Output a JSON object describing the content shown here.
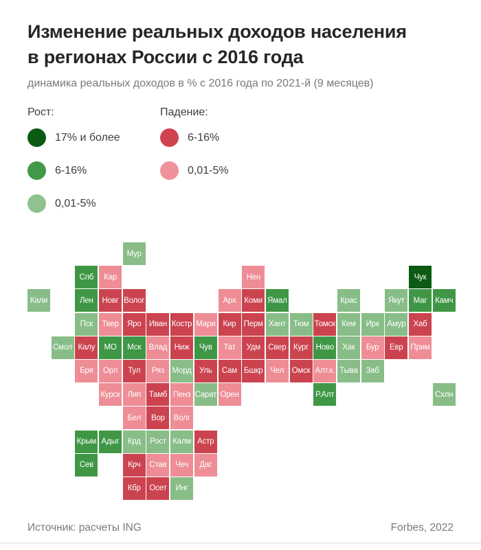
{
  "header": {
    "title_line1": "Изменение реальных доходов населения",
    "title_line2": "в регионах России с 2016 года",
    "subtitle": "динамика реальных доходов в % с 2016 года по 2021-й (9 месяцев)"
  },
  "legend": {
    "growth": {
      "heading": "Рост:",
      "items": [
        {
          "label": "17% и более",
          "color": "#0b5a13"
        },
        {
          "label": "6-16%",
          "color": "#419a48"
        },
        {
          "label": "0,01-5%",
          "color": "#8fc28f"
        }
      ]
    },
    "decline": {
      "heading": "Падение:",
      "items": [
        {
          "label": "6-16%",
          "color": "#d0434f"
        },
        {
          "label": "0,01-5%",
          "color": "#f0929b"
        }
      ]
    }
  },
  "footer": {
    "source": "Источник: расчеты ING",
    "credit": "Forbes, 2022"
  },
  "chart_data": {
    "type": "heatmap",
    "subtype": "tile-grid-cartogram",
    "title": "Изменение реальных доходов населения в регионах России с 2016 года",
    "unit": "динамика реальных доходов в % с 2016 года по 2021-й (9 месяцев)",
    "grid": {
      "columns": 18,
      "rows": 11
    },
    "legend_position": "top-left",
    "categories": {
      "dg": {
        "meaning": "рост 17% и более",
        "color": "#0c5a14"
      },
      "g": {
        "meaning": "рост 6-16%",
        "color": "#3f9746"
      },
      "lg": {
        "meaning": "рост 0,01-5%",
        "color": "#88bd88"
      },
      "r": {
        "meaning": "падение 6-16%",
        "color": "#cb434f"
      },
      "p": {
        "meaning": "падение 0,01-5%",
        "color": "#ee8d96"
      }
    },
    "tiles": [
      {
        "label": "Мур",
        "row": 0,
        "col": 4,
        "cat": "lg"
      },
      {
        "label": "Спб",
        "row": 1,
        "col": 2,
        "cat": "g"
      },
      {
        "label": "Кар",
        "row": 1,
        "col": 3,
        "cat": "p"
      },
      {
        "label": "Нен",
        "row": 1,
        "col": 9,
        "cat": "p"
      },
      {
        "label": "Чук",
        "row": 1,
        "col": 16,
        "cat": "dg"
      },
      {
        "label": "Кали",
        "row": 2,
        "col": 0,
        "cat": "lg"
      },
      {
        "label": "Лен",
        "row": 2,
        "col": 2,
        "cat": "g"
      },
      {
        "label": "Новг",
        "row": 2,
        "col": 3,
        "cat": "r"
      },
      {
        "label": "Волог",
        "row": 2,
        "col": 4,
        "cat": "r"
      },
      {
        "label": "Арх",
        "row": 2,
        "col": 8,
        "cat": "p"
      },
      {
        "label": "Коми",
        "row": 2,
        "col": 9,
        "cat": "r"
      },
      {
        "label": "Ямал",
        "row": 2,
        "col": 10,
        "cat": "g"
      },
      {
        "label": "Крас",
        "row": 2,
        "col": 13,
        "cat": "lg"
      },
      {
        "label": "Якут",
        "row": 2,
        "col": 15,
        "cat": "lg"
      },
      {
        "label": "Маг",
        "row": 2,
        "col": 16,
        "cat": "g"
      },
      {
        "label": "Камч",
        "row": 2,
        "col": 17,
        "cat": "g"
      },
      {
        "label": "Пск",
        "row": 3,
        "col": 2,
        "cat": "lg"
      },
      {
        "label": "Твер",
        "row": 3,
        "col": 3,
        "cat": "p"
      },
      {
        "label": "Яро",
        "row": 3,
        "col": 4,
        "cat": "r"
      },
      {
        "label": "Иван",
        "row": 3,
        "col": 5,
        "cat": "r"
      },
      {
        "label": "Костр",
        "row": 3,
        "col": 6,
        "cat": "r"
      },
      {
        "label": "Мари",
        "row": 3,
        "col": 7,
        "cat": "p"
      },
      {
        "label": "Кир",
        "row": 3,
        "col": 8,
        "cat": "r"
      },
      {
        "label": "Перм",
        "row": 3,
        "col": 9,
        "cat": "r"
      },
      {
        "label": "Хант",
        "row": 3,
        "col": 10,
        "cat": "lg"
      },
      {
        "label": "Тюм",
        "row": 3,
        "col": 11,
        "cat": "lg"
      },
      {
        "label": "Томск",
        "row": 3,
        "col": 12,
        "cat": "r"
      },
      {
        "label": "Кем",
        "row": 3,
        "col": 13,
        "cat": "lg"
      },
      {
        "label": "Ирк",
        "row": 3,
        "col": 14,
        "cat": "lg"
      },
      {
        "label": "Амур",
        "row": 3,
        "col": 15,
        "cat": "lg"
      },
      {
        "label": "Хаб",
        "row": 3,
        "col": 16,
        "cat": "r"
      },
      {
        "label": "Смол",
        "row": 4,
        "col": 1,
        "cat": "lg"
      },
      {
        "label": "Калу",
        "row": 4,
        "col": 2,
        "cat": "r"
      },
      {
        "label": "МО",
        "row": 4,
        "col": 3,
        "cat": "g"
      },
      {
        "label": "Мск",
        "row": 4,
        "col": 4,
        "cat": "g"
      },
      {
        "label": "Влад",
        "row": 4,
        "col": 5,
        "cat": "p"
      },
      {
        "label": "Ниж",
        "row": 4,
        "col": 6,
        "cat": "r"
      },
      {
        "label": "Чув",
        "row": 4,
        "col": 7,
        "cat": "g"
      },
      {
        "label": "Тат",
        "row": 4,
        "col": 8,
        "cat": "p"
      },
      {
        "label": "Удм",
        "row": 4,
        "col": 9,
        "cat": "r"
      },
      {
        "label": "Свер",
        "row": 4,
        "col": 10,
        "cat": "r"
      },
      {
        "label": "Кург",
        "row": 4,
        "col": 11,
        "cat": "r"
      },
      {
        "label": "Ново",
        "row": 4,
        "col": 12,
        "cat": "g"
      },
      {
        "label": "Хак",
        "row": 4,
        "col": 13,
        "cat": "lg"
      },
      {
        "label": "Бур",
        "row": 4,
        "col": 14,
        "cat": "p"
      },
      {
        "label": "Евр",
        "row": 4,
        "col": 15,
        "cat": "r"
      },
      {
        "label": "Прим",
        "row": 4,
        "col": 16,
        "cat": "p"
      },
      {
        "label": "Бря",
        "row": 5,
        "col": 2,
        "cat": "p"
      },
      {
        "label": "Орл",
        "row": 5,
        "col": 3,
        "cat": "p"
      },
      {
        "label": "Тул",
        "row": 5,
        "col": 4,
        "cat": "r"
      },
      {
        "label": "Ряз",
        "row": 5,
        "col": 5,
        "cat": "p"
      },
      {
        "label": "Морд",
        "row": 5,
        "col": 6,
        "cat": "lg"
      },
      {
        "label": "Уль",
        "row": 5,
        "col": 7,
        "cat": "r"
      },
      {
        "label": "Сам",
        "row": 5,
        "col": 8,
        "cat": "r"
      },
      {
        "label": "Бшкр",
        "row": 5,
        "col": 9,
        "cat": "r"
      },
      {
        "label": "Чел",
        "row": 5,
        "col": 10,
        "cat": "p"
      },
      {
        "label": "Омск",
        "row": 5,
        "col": 11,
        "cat": "r"
      },
      {
        "label": "Алт.к.",
        "row": 5,
        "col": 12,
        "cat": "p"
      },
      {
        "label": "Тыва",
        "row": 5,
        "col": 13,
        "cat": "lg"
      },
      {
        "label": "Заб",
        "row": 5,
        "col": 14,
        "cat": "lg"
      },
      {
        "label": "Курск",
        "row": 6,
        "col": 3,
        "cat": "p"
      },
      {
        "label": "Лип",
        "row": 6,
        "col": 4,
        "cat": "p"
      },
      {
        "label": "Тамб",
        "row": 6,
        "col": 5,
        "cat": "r"
      },
      {
        "label": "Пенз",
        "row": 6,
        "col": 6,
        "cat": "p"
      },
      {
        "label": "Сарат",
        "row": 6,
        "col": 7,
        "cat": "lg"
      },
      {
        "label": "Орен",
        "row": 6,
        "col": 8,
        "cat": "p"
      },
      {
        "label": "Р.Алт",
        "row": 6,
        "col": 12,
        "cat": "g"
      },
      {
        "label": "Схлн",
        "row": 6,
        "col": 17,
        "cat": "lg"
      },
      {
        "label": "Бел",
        "row": 7,
        "col": 4,
        "cat": "p"
      },
      {
        "label": "Вор",
        "row": 7,
        "col": 5,
        "cat": "r"
      },
      {
        "label": "Волг",
        "row": 7,
        "col": 6,
        "cat": "p"
      },
      {
        "label": "Крым",
        "row": 8,
        "col": 2,
        "cat": "g"
      },
      {
        "label": "Адыг",
        "row": 8,
        "col": 3,
        "cat": "g"
      },
      {
        "label": "Крд",
        "row": 8,
        "col": 4,
        "cat": "lg"
      },
      {
        "label": "Рост",
        "row": 8,
        "col": 5,
        "cat": "lg"
      },
      {
        "label": "Калм",
        "row": 8,
        "col": 6,
        "cat": "lg"
      },
      {
        "label": "Астр",
        "row": 8,
        "col": 7,
        "cat": "r"
      },
      {
        "label": "Сев",
        "row": 9,
        "col": 2,
        "cat": "g"
      },
      {
        "label": "Крч",
        "row": 9,
        "col": 4,
        "cat": "r"
      },
      {
        "label": "Став",
        "row": 9,
        "col": 5,
        "cat": "p"
      },
      {
        "label": "Чеч",
        "row": 9,
        "col": 6,
        "cat": "p"
      },
      {
        "label": "Даг",
        "row": 9,
        "col": 7,
        "cat": "p"
      },
      {
        "label": "Кбр",
        "row": 10,
        "col": 4,
        "cat": "r"
      },
      {
        "label": "Осет",
        "row": 10,
        "col": 5,
        "cat": "r"
      },
      {
        "label": "Инг",
        "row": 10,
        "col": 6,
        "cat": "lg"
      }
    ]
  }
}
